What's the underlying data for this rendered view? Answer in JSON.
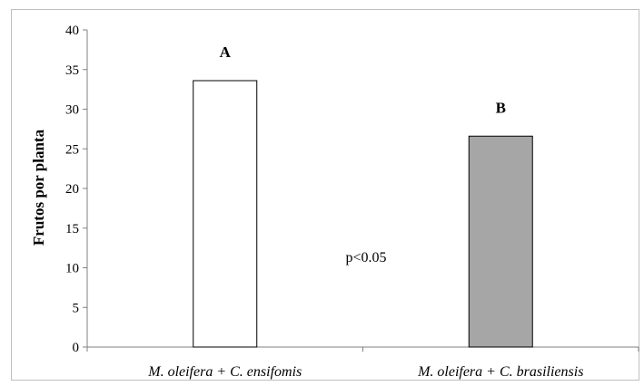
{
  "chart_data": {
    "type": "bar",
    "title": "",
    "xlabel": "",
    "ylabel": "Frutos por planta",
    "ylim": [
      0,
      40
    ],
    "yticks": [
      0,
      5,
      10,
      15,
      20,
      25,
      30,
      35,
      40
    ],
    "grid": false,
    "categories": [
      "M. oleifera + C. ensifomis",
      "M. oleifera + C. brasiliensis"
    ],
    "values": [
      33.6,
      26.6
    ],
    "bar_colors": [
      "#ffffff",
      "#a6a6a6"
    ],
    "bar_labels": [
      "A",
      "B"
    ],
    "annotation": "p<0.05"
  }
}
